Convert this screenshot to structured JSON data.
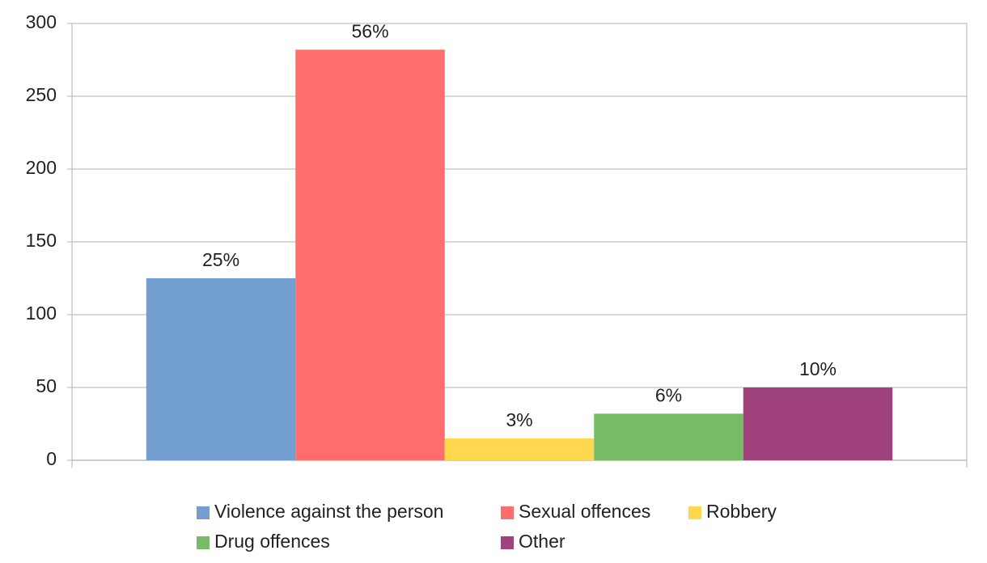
{
  "chart_data": {
    "type": "bar",
    "categories": [
      null
    ],
    "series": [
      {
        "name": "Violence against the person",
        "color": "#729fcf",
        "values": [
          125
        ],
        "share_labels": [
          "25%"
        ]
      },
      {
        "name": "Sexual offences",
        "color": "#ff6d6d",
        "values": [
          282
        ],
        "share_labels": [
          "56%"
        ]
      },
      {
        "name": "Robbery",
        "color": "#ffd84f",
        "values": [
          15
        ],
        "share_labels": [
          "3%"
        ]
      },
      {
        "name": "Drug offences",
        "color": "#77bc65",
        "values": [
          32
        ],
        "share_labels": [
          "6%"
        ]
      },
      {
        "name": "Other",
        "color": "#a0437c",
        "values": [
          50
        ],
        "share_labels": [
          "10%"
        ]
      }
    ],
    "ylim": [
      0,
      300
    ],
    "yticks": [
      0,
      50,
      100,
      150,
      200,
      250,
      300
    ],
    "grid": true,
    "legend": "bottom"
  }
}
